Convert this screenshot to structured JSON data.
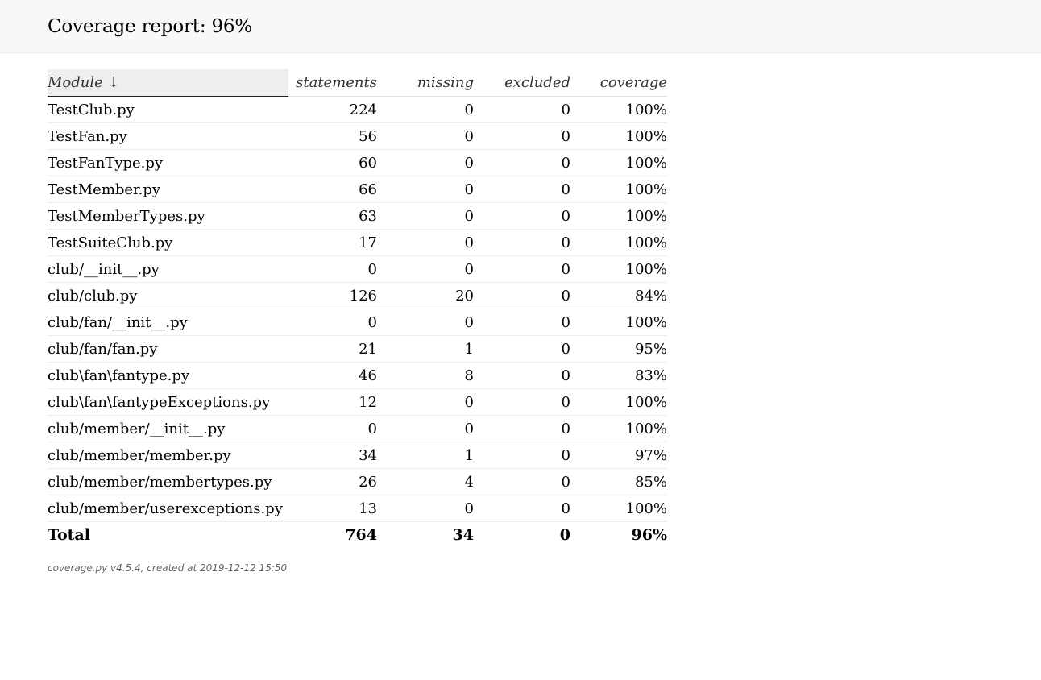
{
  "header": {
    "title": "Coverage report: 96%"
  },
  "table": {
    "columns": {
      "module": "Module ↓",
      "statements": "statements",
      "missing": "missing",
      "excluded": "excluded",
      "coverage": "coverage"
    },
    "rows": [
      {
        "name": "TestClub.py",
        "statements": "224",
        "missing": "0",
        "excluded": "0",
        "coverage": "100%"
      },
      {
        "name": "TestFan.py",
        "statements": "56",
        "missing": "0",
        "excluded": "0",
        "coverage": "100%"
      },
      {
        "name": "TestFanType.py",
        "statements": "60",
        "missing": "0",
        "excluded": "0",
        "coverage": "100%"
      },
      {
        "name": "TestMember.py",
        "statements": "66",
        "missing": "0",
        "excluded": "0",
        "coverage": "100%"
      },
      {
        "name": "TestMemberTypes.py",
        "statements": "63",
        "missing": "0",
        "excluded": "0",
        "coverage": "100%"
      },
      {
        "name": "TestSuiteClub.py",
        "statements": "17",
        "missing": "0",
        "excluded": "0",
        "coverage": "100%"
      },
      {
        "name": "club/__init__.py",
        "statements": "0",
        "missing": "0",
        "excluded": "0",
        "coverage": "100%"
      },
      {
        "name": "club/club.py",
        "statements": "126",
        "missing": "20",
        "excluded": "0",
        "coverage": "84%"
      },
      {
        "name": "club/fan/__init__.py",
        "statements": "0",
        "missing": "0",
        "excluded": "0",
        "coverage": "100%"
      },
      {
        "name": "club/fan/fan.py",
        "statements": "21",
        "missing": "1",
        "excluded": "0",
        "coverage": "95%"
      },
      {
        "name": "club\\fan\\fantype.py",
        "statements": "46",
        "missing": "8",
        "excluded": "0",
        "coverage": "83%"
      },
      {
        "name": "club\\fan\\fantypeExceptions.py",
        "statements": "12",
        "missing": "0",
        "excluded": "0",
        "coverage": "100%"
      },
      {
        "name": "club/member/__init__.py",
        "statements": "0",
        "missing": "0",
        "excluded": "0",
        "coverage": "100%"
      },
      {
        "name": "club/member/member.py",
        "statements": "34",
        "missing": "1",
        "excluded": "0",
        "coverage": "97%"
      },
      {
        "name": "club/member/membertypes.py",
        "statements": "26",
        "missing": "4",
        "excluded": "0",
        "coverage": "85%"
      },
      {
        "name": "club/member/userexceptions.py",
        "statements": "13",
        "missing": "0",
        "excluded": "0",
        "coverage": "100%"
      }
    ],
    "total": {
      "name": "Total",
      "statements": "764",
      "missing": "34",
      "excluded": "0",
      "coverage": "96%"
    }
  },
  "footer": {
    "link_text": "coverage.py v4.5.4",
    "created_text": ", created at 2019-12-12 15:50"
  }
}
